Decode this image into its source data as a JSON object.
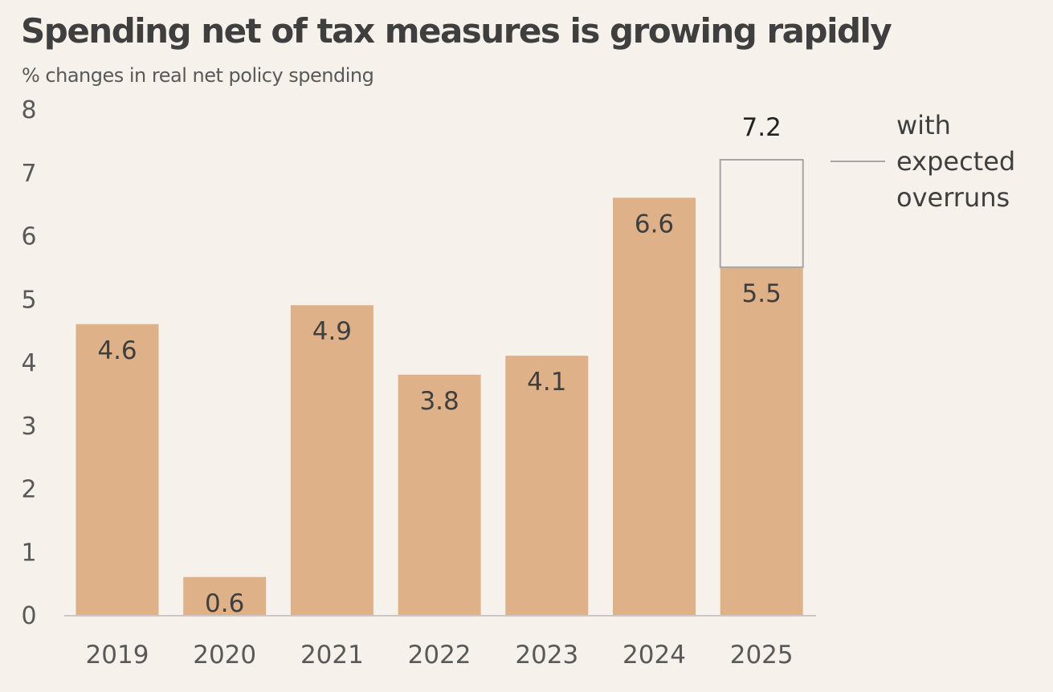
{
  "chart_data": {
    "type": "bar",
    "title": "Spending net of tax measures is growing rapidly",
    "subtitle": "% changes in real net policy spending",
    "categories": [
      "2019",
      "2020",
      "2021",
      "2022",
      "2023",
      "2024",
      "2025"
    ],
    "series": [
      {
        "name": "",
        "values": [
          4.6,
          0.6,
          4.9,
          3.8,
          4.1,
          6.6,
          5.5
        ],
        "labels": [
          "4.6",
          "0.6",
          "4.9",
          "3.8",
          "4.1",
          "6.6",
          "5.5"
        ],
        "color": "#dfb189"
      },
      {
        "name": "with expected overruns",
        "name_lines": [
          "with",
          "expected",
          "overruns"
        ],
        "category": "2025",
        "value": 7.2,
        "label": "7.2",
        "stroke": "#a6a6a6"
      }
    ],
    "y_ticks": [
      "0",
      "1",
      "2",
      "3",
      "4",
      "5",
      "6",
      "7",
      "8"
    ],
    "ylim": [
      0,
      8
    ],
    "grid": false,
    "legend_position": "right",
    "colors": {
      "background": "#f6f1eb",
      "bar": "#dfb189",
      "overrun_outline": "#a6a6a6",
      "axis": "#c8c8c8"
    }
  }
}
